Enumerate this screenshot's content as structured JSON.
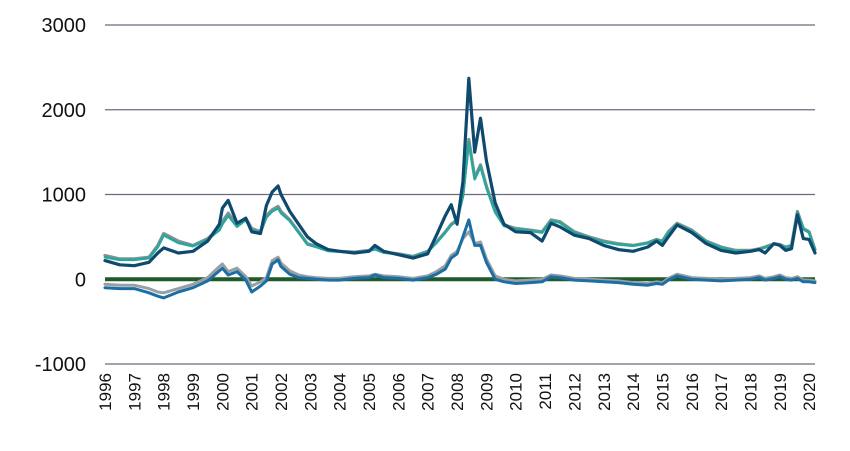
{
  "chart_data": {
    "type": "line",
    "title": "",
    "xlabel": "",
    "ylabel": "",
    "xlim": [
      1996,
      2020.2
    ],
    "ylim": [
      -1000,
      3000
    ],
    "grid": true,
    "legend": "none",
    "y_ticks": [
      "-1000",
      "0",
      "1000",
      "2000",
      "3000"
    ],
    "x_ticks": [
      "1996",
      "1997",
      "1998",
      "1999",
      "2000",
      "2001",
      "2002",
      "2003",
      "2004",
      "2005",
      "2006",
      "2007",
      "2008",
      "2009",
      "2010",
      "2011",
      "2012",
      "2013",
      "2014",
      "2015",
      "2016",
      "2017",
      "2018",
      "2019",
      "2020"
    ],
    "colors": {
      "grid": "#6b6b7b",
      "zero_line": "#1e5a2a",
      "series": [
        "#0f4a6e",
        "#8a8f93",
        "#2aa79b",
        "#1c6ea4",
        "#9a9fa3"
      ]
    },
    "series": [
      {
        "x": [
          1996.0,
          1996.5,
          1997.0,
          1997.5,
          1997.8,
          1998.0,
          1998.5,
          1999.0,
          1999.5,
          1999.9,
          2000.0,
          2000.2,
          2000.5,
          2000.8,
          2001.0,
          2001.3,
          2001.5,
          2001.7,
          2001.9,
          2002.0,
          2002.3,
          2002.6,
          2002.9,
          2003.2,
          2003.6,
          2004.0,
          2004.5,
          2005.0,
          2005.2,
          2005.5,
          2006.0,
          2006.5,
          2007.0,
          2007.3,
          2007.6,
          2007.8,
          2008.0,
          2008.2,
          2008.4,
          2008.6,
          2008.8,
          2009.0,
          2009.3,
          2009.6,
          2010.0,
          2010.5,
          2010.9,
          2011.2,
          2011.5,
          2012.0,
          2012.5,
          2013.0,
          2013.5,
          2014.0,
          2014.5,
          2014.8,
          2015.0,
          2015.2,
          2015.5,
          2016.0,
          2016.5,
          2017.0,
          2017.5,
          2018.0,
          2018.3,
          2018.5,
          2018.8,
          2019.0,
          2019.2,
          2019.4,
          2019.6,
          2019.8,
          2020.0,
          2020.2
        ],
        "values": [
          220,
          170,
          160,
          200,
          310,
          370,
          310,
          330,
          450,
          650,
          840,
          930,
          660,
          720,
          560,
          540,
          870,
          1030,
          1100,
          1000,
          800,
          650,
          500,
          420,
          350,
          330,
          310,
          330,
          400,
          330,
          290,
          250,
          300,
          520,
          750,
          880,
          650,
          1150,
          2370,
          1500,
          1900,
          1400,
          900,
          650,
          560,
          550,
          450,
          660,
          620,
          520,
          480,
          400,
          350,
          330,
          380,
          450,
          400,
          500,
          640,
          550,
          420,
          340,
          310,
          330,
          350,
          310,
          420,
          400,
          340,
          360,
          760,
          480,
          470,
          310
        ]
      },
      {
        "x": [
          1996.0,
          1996.5,
          1997.0,
          1997.5,
          1997.8,
          1998.0,
          1998.5,
          1999.0,
          1999.5,
          1999.9,
          2000.0,
          2000.2,
          2000.5,
          2000.8,
          2001.0,
          2001.3,
          2001.5,
          2001.7,
          2001.9,
          2002.0,
          2002.3,
          2002.6,
          2002.9,
          2003.2,
          2003.6,
          2004.0,
          2004.5,
          2005.0,
          2005.2,
          2005.5,
          2006.0,
          2006.5,
          2007.0,
          2007.3,
          2007.6,
          2007.8,
          2008.0,
          2008.2,
          2008.4,
          2008.6,
          2008.8,
          2009.0,
          2009.3,
          2009.6,
          2010.0,
          2010.5,
          2010.9,
          2011.2,
          2011.5,
          2012.0,
          2012.5,
          2013.0,
          2013.5,
          2014.0,
          2014.5,
          2014.8,
          2015.0,
          2015.2,
          2015.5,
          2016.0,
          2016.5,
          2017.0,
          2017.5,
          2018.0,
          2018.3,
          2018.5,
          2018.8,
          2019.0,
          2019.2,
          2019.4,
          2019.6,
          2019.8,
          2020.0,
          2020.2
        ],
        "values": [
          280,
          240,
          240,
          260,
          400,
          540,
          450,
          400,
          480,
          600,
          680,
          780,
          640,
          720,
          600,
          560,
          750,
          820,
          860,
          800,
          700,
          560,
          420,
          390,
          340,
          330,
          320,
          340,
          360,
          320,
          300,
          270,
          330,
          440,
          560,
          650,
          700,
          1000,
          1650,
          1200,
          1350,
          1100,
          800,
          640,
          600,
          580,
          560,
          700,
          680,
          560,
          500,
          450,
          420,
          400,
          430,
          470,
          450,
          560,
          660,
          580,
          450,
          380,
          340,
          340,
          360,
          380,
          420,
          410,
          380,
          400,
          800,
          600,
          560,
          350
        ]
      },
      {
        "x": [
          1996.0,
          1996.5,
          1997.0,
          1997.5,
          1997.8,
          1998.0,
          1998.5,
          1999.0,
          1999.5,
          1999.9,
          2000.0,
          2000.2,
          2000.5,
          2000.8,
          2001.0,
          2001.3,
          2001.5,
          2001.7,
          2001.9,
          2002.0,
          2002.3,
          2002.6,
          2002.9,
          2003.2,
          2003.6,
          2004.0,
          2004.5,
          2005.0,
          2005.2,
          2005.5,
          2006.0,
          2006.5,
          2007.0,
          2007.3,
          2007.6,
          2007.8,
          2008.0,
          2008.2,
          2008.4,
          2008.6,
          2008.8,
          2009.0,
          2009.3,
          2009.6,
          2010.0,
          2010.5,
          2010.9,
          2011.2,
          2011.5,
          2012.0,
          2012.5,
          2013.0,
          2013.5,
          2014.0,
          2014.5,
          2014.8,
          2015.0,
          2015.2,
          2015.5,
          2016.0,
          2016.5,
          2017.0,
          2017.5,
          2018.0,
          2018.3,
          2018.5,
          2018.8,
          2019.0,
          2019.2,
          2019.4,
          2019.6,
          2019.8,
          2020.0,
          2020.2
        ],
        "values": [
          260,
          230,
          230,
          250,
          380,
          520,
          430,
          390,
          470,
          580,
          650,
          750,
          620,
          700,
          580,
          550,
          730,
          800,
          840,
          780,
          690,
          550,
          410,
          380,
          335,
          325,
          315,
          335,
          355,
          315,
          295,
          265,
          325,
          430,
          550,
          640,
          690,
          980,
          1620,
          1180,
          1330,
          1080,
          790,
          630,
          590,
          570,
          550,
          690,
          670,
          550,
          490,
          440,
          410,
          395,
          425,
          465,
          445,
          550,
          650,
          570,
          445,
          375,
          335,
          335,
          355,
          375,
          415,
          405,
          375,
          395,
          790,
          590,
          550,
          345
        ]
      },
      {
        "x": [
          1996.0,
          1996.5,
          1997.0,
          1997.5,
          1997.8,
          1998.0,
          1998.5,
          1999.0,
          1999.5,
          1999.9,
          2000.0,
          2000.2,
          2000.5,
          2000.8,
          2001.0,
          2001.3,
          2001.5,
          2001.7,
          2001.9,
          2002.0,
          2002.3,
          2002.6,
          2002.9,
          2003.2,
          2003.6,
          2004.0,
          2004.5,
          2005.0,
          2005.2,
          2005.5,
          2006.0,
          2006.5,
          2007.0,
          2007.3,
          2007.6,
          2007.8,
          2008.0,
          2008.2,
          2008.4,
          2008.6,
          2008.8,
          2009.0,
          2009.3,
          2009.6,
          2010.0,
          2010.5,
          2010.9,
          2011.2,
          2011.5,
          2012.0,
          2012.5,
          2013.0,
          2013.5,
          2014.0,
          2014.5,
          2014.8,
          2015.0,
          2015.2,
          2015.5,
          2016.0,
          2016.5,
          2017.0,
          2017.5,
          2018.0,
          2018.3,
          2018.5,
          2018.8,
          2019.0,
          2019.2,
          2019.4,
          2019.6,
          2019.8,
          2020.0,
          2020.2
        ],
        "values": [
          -100,
          -110,
          -110,
          -160,
          -200,
          -220,
          -150,
          -100,
          -20,
          100,
          130,
          50,
          90,
          -10,
          -150,
          -80,
          -20,
          180,
          230,
          150,
          60,
          20,
          10,
          0,
          -10,
          -10,
          10,
          20,
          50,
          20,
          10,
          -10,
          20,
          60,
          120,
          250,
          300,
          500,
          700,
          400,
          400,
          200,
          0,
          -30,
          -50,
          -40,
          -30,
          30,
          20,
          -10,
          -20,
          -30,
          -40,
          -60,
          -70,
          -50,
          -60,
          -10,
          40,
          0,
          -10,
          -20,
          -10,
          0,
          20,
          -10,
          10,
          30,
          0,
          -10,
          10,
          -30,
          -30,
          -40
        ]
      },
      {
        "x": [
          1996.0,
          1996.5,
          1997.0,
          1997.5,
          1997.8,
          1998.0,
          1998.5,
          1999.0,
          1999.5,
          1999.9,
          2000.0,
          2000.2,
          2000.5,
          2000.8,
          2001.0,
          2001.3,
          2001.5,
          2001.7,
          2001.9,
          2002.0,
          2002.3,
          2002.6,
          2002.9,
          2003.2,
          2003.6,
          2004.0,
          2004.5,
          2005.0,
          2005.2,
          2005.5,
          2006.0,
          2006.5,
          2007.0,
          2007.3,
          2007.6,
          2007.8,
          2008.0,
          2008.2,
          2008.4,
          2008.6,
          2008.8,
          2009.0,
          2009.3,
          2009.6,
          2010.0,
          2010.5,
          2010.9,
          2011.2,
          2011.5,
          2012.0,
          2012.5,
          2013.0,
          2013.5,
          2014.0,
          2014.5,
          2014.8,
          2015.0,
          2015.2,
          2015.5,
          2016.0,
          2016.5,
          2017.0,
          2017.5,
          2018.0,
          2018.3,
          2018.5,
          2018.8,
          2019.0,
          2019.2,
          2019.4,
          2019.6,
          2019.8,
          2020.0,
          2020.2
        ],
        "values": [
          -60,
          -70,
          -70,
          -110,
          -150,
          -160,
          -110,
          -60,
          20,
          150,
          180,
          90,
          130,
          30,
          -80,
          -30,
          20,
          220,
          260,
          190,
          100,
          50,
          30,
          20,
          10,
          10,
          30,
          40,
          60,
          40,
          30,
          10,
          40,
          90,
          160,
          280,
          330,
          480,
          560,
          420,
          440,
          240,
          40,
          0,
          -20,
          -10,
          0,
          50,
          40,
          10,
          0,
          -10,
          -20,
          -40,
          -50,
          -30,
          -40,
          10,
          60,
          20,
          10,
          0,
          10,
          20,
          40,
          10,
          30,
          50,
          20,
          10,
          30,
          -10,
          -10,
          -20
        ]
      }
    ]
  }
}
